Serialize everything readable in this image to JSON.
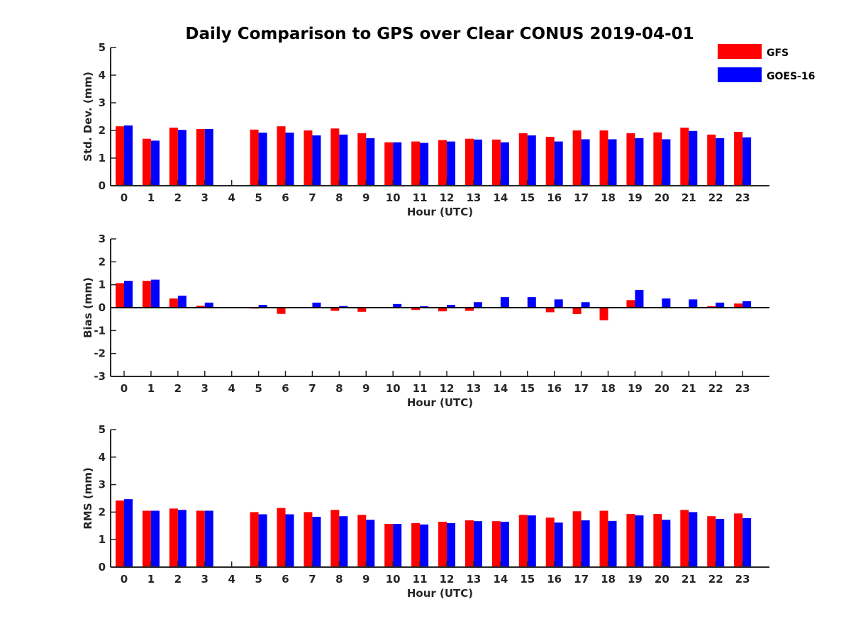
{
  "chart_data": {
    "title": "Daily Comparison to GPS over Clear CONUS 2019-04-01",
    "legend": {
      "placement": "top-right",
      "entries": [
        {
          "name": "GFS",
          "color": "#ff0000"
        },
        {
          "name": "GOES-16",
          "color": "#0000ff"
        }
      ]
    },
    "panels": [
      {
        "type": "bar",
        "xlabel": "Hour (UTC)",
        "ylabel": "Std. Dev. (mm)",
        "ylim": [
          0,
          5
        ],
        "yticks": [
          0,
          1,
          2,
          3,
          4,
          5
        ],
        "categories": [
          "0",
          "1",
          "2",
          "3",
          "4",
          "5",
          "6",
          "7",
          "8",
          "9",
          "10",
          "11",
          "12",
          "13",
          "14",
          "15",
          "16",
          "17",
          "18",
          "19",
          "20",
          "21",
          "22",
          "23"
        ],
        "series": [
          {
            "name": "GFS",
            "values": [
              2.15,
              1.7,
              2.1,
              2.05,
              null,
              2.03,
              2.15,
              2.0,
              2.07,
              1.9,
              1.57,
              1.6,
              1.65,
              1.7,
              1.67,
              1.9,
              1.77,
              2.0,
              2.0,
              1.9,
              1.93,
              2.1,
              1.85,
              1.95
            ]
          },
          {
            "name": "GOES-16",
            "values": [
              2.18,
              1.63,
              2.02,
              2.05,
              null,
              1.92,
              1.92,
              1.82,
              1.85,
              1.72,
              1.57,
              1.55,
              1.6,
              1.67,
              1.57,
              1.82,
              1.6,
              1.68,
              1.68,
              1.72,
              1.68,
              1.98,
              1.72,
              1.75
            ]
          }
        ]
      },
      {
        "type": "bar",
        "xlabel": "Hour (UTC)",
        "ylabel": "Bias (mm)",
        "ylim": [
          -3,
          3
        ],
        "yticks": [
          -3,
          -2,
          -1,
          0,
          1,
          2,
          3
        ],
        "categories": [
          "0",
          "1",
          "2",
          "3",
          "4",
          "5",
          "6",
          "7",
          "8",
          "9",
          "10",
          "11",
          "12",
          "13",
          "14",
          "15",
          "16",
          "17",
          "18",
          "19",
          "20",
          "21",
          "22",
          "23"
        ],
        "series": [
          {
            "name": "GFS",
            "values": [
              1.07,
              1.17,
              0.4,
              0.08,
              null,
              -0.04,
              -0.27,
              0.0,
              -0.14,
              -0.18,
              -0.03,
              -0.1,
              -0.16,
              -0.14,
              0.02,
              0.0,
              -0.2,
              -0.28,
              -0.55,
              0.33,
              0.0,
              0.0,
              0.06,
              0.18
            ]
          },
          {
            "name": "GOES-16",
            "values": [
              1.17,
              1.22,
              0.52,
              0.22,
              null,
              0.12,
              -0.02,
              0.22,
              0.07,
              0.0,
              0.16,
              0.06,
              0.12,
              0.24,
              0.46,
              0.46,
              0.36,
              0.24,
              -0.02,
              0.77,
              0.4,
              0.36,
              0.22,
              0.28
            ]
          }
        ]
      },
      {
        "type": "bar",
        "xlabel": "Hour (UTC)",
        "ylabel": "RMS (mm)",
        "ylim": [
          0,
          5
        ],
        "yticks": [
          0,
          1,
          2,
          3,
          4,
          5
        ],
        "categories": [
          "0",
          "1",
          "2",
          "3",
          "4",
          "5",
          "6",
          "7",
          "8",
          "9",
          "10",
          "11",
          "12",
          "13",
          "14",
          "15",
          "16",
          "17",
          "18",
          "19",
          "20",
          "21",
          "22",
          "23"
        ],
        "series": [
          {
            "name": "GFS",
            "values": [
              2.42,
              2.05,
              2.13,
              2.05,
              null,
              2.0,
              2.15,
              2.0,
              2.08,
              1.9,
              1.57,
              1.6,
              1.65,
              1.7,
              1.67,
              1.9,
              1.8,
              2.03,
              2.05,
              1.93,
              1.93,
              2.08,
              1.85,
              1.95
            ]
          },
          {
            "name": "GOES-16",
            "values": [
              2.47,
              2.05,
              2.08,
              2.05,
              null,
              1.92,
              1.92,
              1.83,
              1.85,
              1.72,
              1.57,
              1.55,
              1.6,
              1.67,
              1.65,
              1.88,
              1.62,
              1.7,
              1.68,
              1.88,
              1.72,
              2.0,
              1.75,
              1.78
            ]
          }
        ]
      }
    ]
  }
}
